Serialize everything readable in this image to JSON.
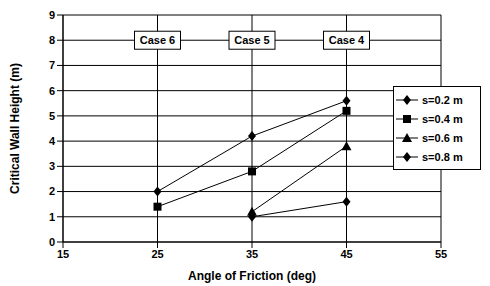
{
  "chart_data": {
    "type": "line",
    "x_label": "Angle of Friction (deg)",
    "y_label": "Critical Wall Height (m)",
    "xlim": [
      15,
      55
    ],
    "xticks": [
      15,
      25,
      35,
      45,
      55
    ],
    "ylim": [
      0,
      9
    ],
    "yticks": [
      0,
      1,
      2,
      3,
      4,
      5,
      6,
      7,
      8,
      9
    ],
    "grid": true,
    "legend": "right",
    "series": [
      {
        "name": "s=0.2 m",
        "color": "#000000",
        "marker": "diamond",
        "x": [
          25,
          35,
          45
        ],
        "values": [
          2.0,
          4.2,
          5.6
        ]
      },
      {
        "name": "s=0.4 m",
        "color": "#000000",
        "marker": "square",
        "x": [
          25,
          35,
          45
        ],
        "values": [
          1.4,
          2.8,
          5.2
        ]
      },
      {
        "name": "s=0.6 m",
        "color": "#000000",
        "marker": "triangle",
        "x": [
          35,
          45
        ],
        "values": [
          1.2,
          3.8
        ]
      },
      {
        "name": "s=0.8 m",
        "color": "#000000",
        "marker": "diamond",
        "x": [
          35,
          45
        ],
        "values": [
          1.0,
          1.6
        ]
      }
    ],
    "annotations": [
      {
        "text": "Case 6",
        "x": 25,
        "y": 8
      },
      {
        "text": "Case 5",
        "x": 35,
        "y": 8
      },
      {
        "text": "Case 4",
        "x": 45,
        "y": 8
      }
    ]
  }
}
